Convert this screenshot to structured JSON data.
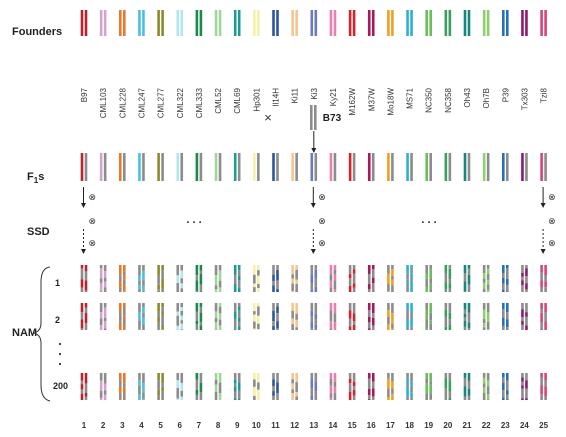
{
  "labels": {
    "founders": "Founders",
    "f1s_main": "F",
    "f1s_sub": "1",
    "f1s_tail": "s",
    "ssd": "SSD",
    "nam": "NAM",
    "row_1": "1",
    "row_2": "2",
    "row_200": "200",
    "cross": "×",
    "b73": "B73",
    "self_symbol": "⊗",
    "dots": ". . ."
  },
  "gray": "#8c8c8c",
  "founders": [
    {
      "name": "B97",
      "color": "#b8232f",
      "num": "1"
    },
    {
      "name": "CML103",
      "color": "#d4a3cc",
      "num": "2"
    },
    {
      "name": "CML228",
      "color": "#e8792a",
      "num": "3"
    },
    {
      "name": "CML247",
      "color": "#49c0df",
      "num": "4"
    },
    {
      "name": "CML277",
      "color": "#8d8a2e",
      "num": "5"
    },
    {
      "name": "CML322",
      "color": "#b3e6ef",
      "num": "6"
    },
    {
      "name": "CML333",
      "color": "#1a8a4b",
      "num": "7"
    },
    {
      "name": "CML52",
      "color": "#9fd69a",
      "num": "8"
    },
    {
      "name": "CML69",
      "color": "#1b9b91",
      "num": "9"
    },
    {
      "name": "Hp301",
      "color": "#f5f0a6",
      "num": "10"
    },
    {
      "name": "Il14H",
      "color": "#2d55a2",
      "num": "11"
    },
    {
      "name": "Ki11",
      "color": "#f3c58f",
      "num": "12"
    },
    {
      "name": "Ki3",
      "color": "#6c7ab8",
      "num": "13"
    },
    {
      "name": "Ky21",
      "color": "#e77fb1",
      "num": "14"
    },
    {
      "name": "M162W",
      "color": "#d4232c",
      "num": "15"
    },
    {
      "name": "M37W",
      "color": "#a8185a",
      "num": "16"
    },
    {
      "name": "Mo18W",
      "color": "#f0a020",
      "num": "17"
    },
    {
      "name": "MS71",
      "color": "#2ab3d1",
      "num": "18"
    },
    {
      "name": "NC350",
      "color": "#6bbf59",
      "num": "19"
    },
    {
      "name": "NC358",
      "color": "#3a9e60",
      "num": "20"
    },
    {
      "name": "Oh43",
      "color": "#16877a",
      "num": "21"
    },
    {
      "name": "Oh7B",
      "color": "#8fcf6f",
      "num": "22"
    },
    {
      "name": "P39",
      "color": "#2671b6",
      "num": "23"
    },
    {
      "name": "Tx303",
      "color": "#8c1a73",
      "num": "24"
    },
    {
      "name": "Tzi8",
      "color": "#d9437c",
      "num": "25"
    }
  ]
}
